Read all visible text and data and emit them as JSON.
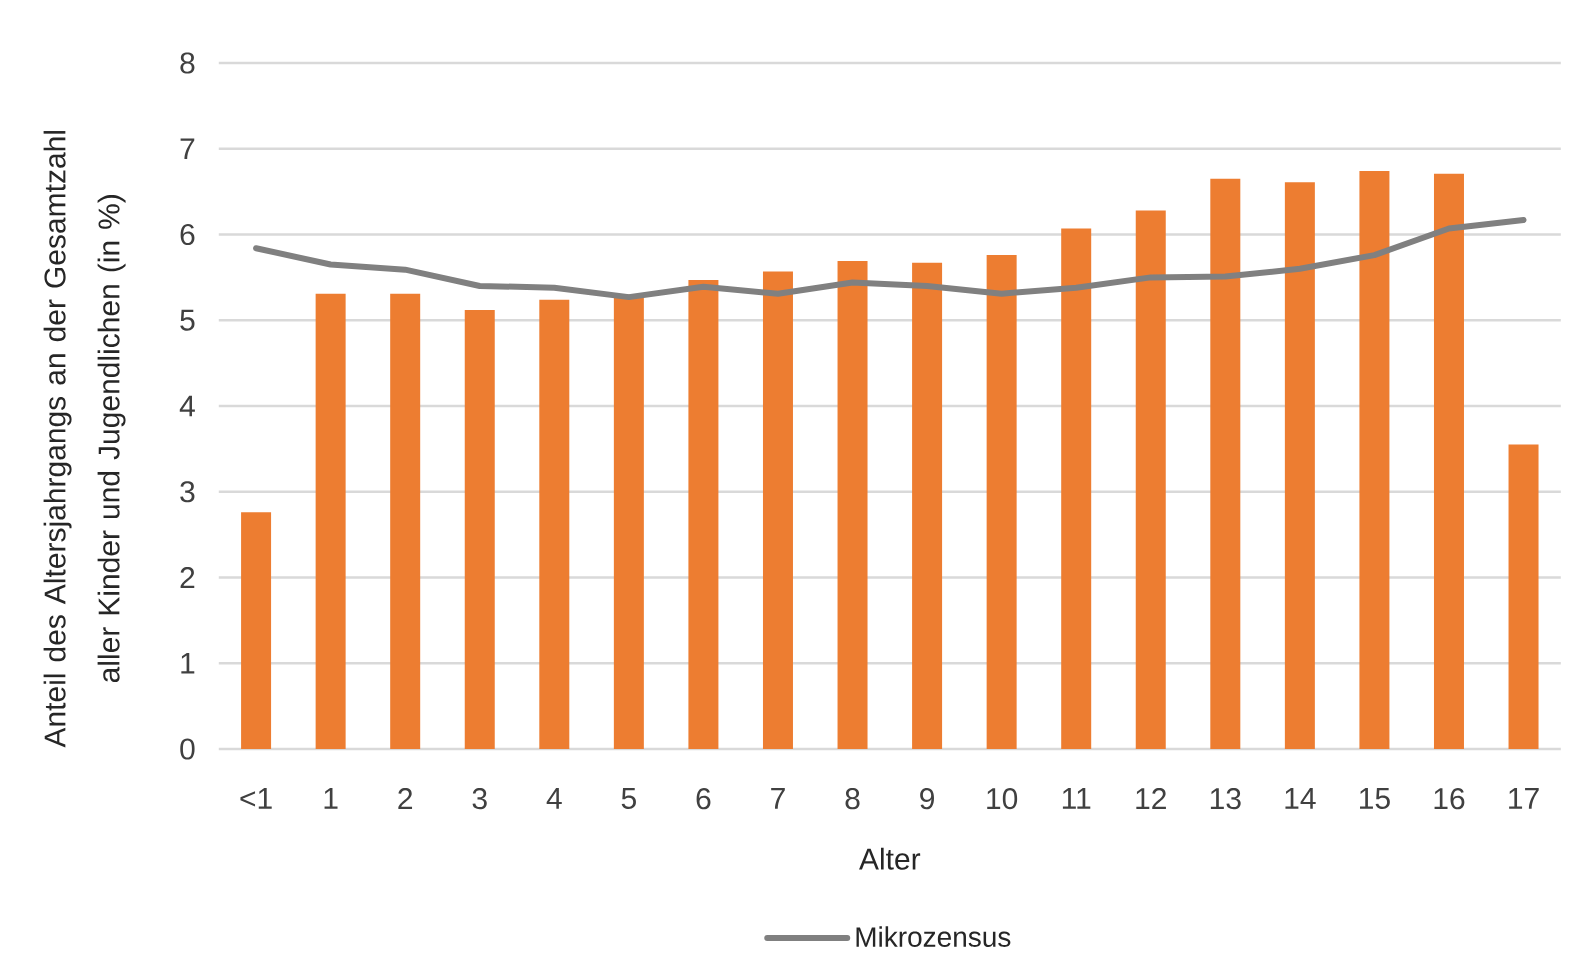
{
  "chart_data": {
    "type": "bar",
    "xlabel": "Alter",
    "ylabel": "Anteil des Altersjahrgangs an der Gesamtzahl aller Kinder und Jugendlichen (in %)",
    "categories": [
      "<1",
      "1",
      "2",
      "3",
      "4",
      "5",
      "6",
      "7",
      "8",
      "9",
      "10",
      "11",
      "12",
      "13",
      "14",
      "15",
      "16",
      "17"
    ],
    "series": [
      {
        "color": "#ed7d31",
        "values": [
          2.76,
          5.31,
          5.31,
          5.12,
          5.24,
          5.3,
          5.47,
          5.57,
          5.69,
          5.67,
          5.76,
          6.07,
          6.28,
          6.65,
          6.61,
          6.74,
          6.71,
          3.55
        ]
      },
      {
        "type": "line",
        "name": "Mikrozensus",
        "color": "#808080",
        "values": [
          5.84,
          5.65,
          5.59,
          5.4,
          5.38,
          5.27,
          5.39,
          5.31,
          5.44,
          5.4,
          5.31,
          5.38,
          5.5,
          5.51,
          5.6,
          5.76,
          6.07,
          6.17
        ]
      }
    ],
    "ylim": [
      0,
      8
    ],
    "yticks": [
      0,
      1,
      2,
      3,
      4,
      5,
      6,
      7,
      8
    ],
    "grid": "y",
    "legend": "bottom"
  }
}
